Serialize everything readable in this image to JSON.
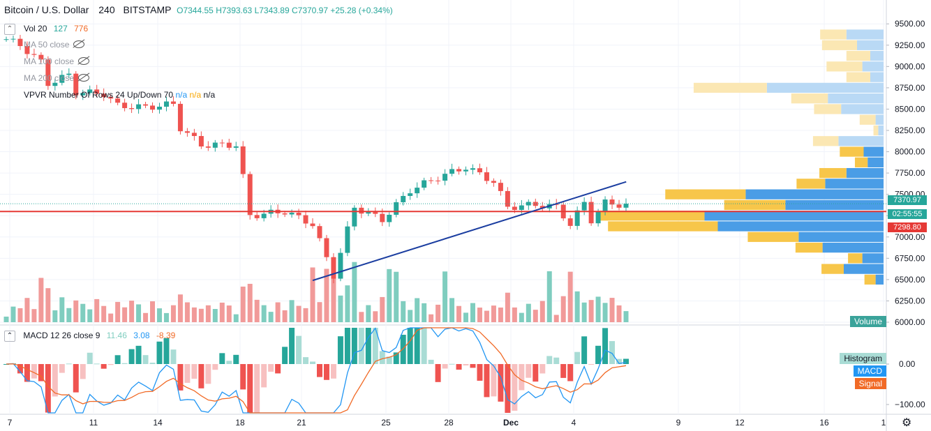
{
  "header": {
    "symbol": "Bitcoin / U.S. Dollar",
    "interval": "240",
    "exchange": "BITSTAMP",
    "open": "O7344.55",
    "high": "H7393.63",
    "low": "L7343.89",
    "close": "C7370.97",
    "change": "+25.28 (+0.34%)"
  },
  "legend": {
    "vol_label": "Vol 20",
    "vol_v1": "127",
    "vol_v2": "776",
    "ma50": "MA 50 close",
    "ma100": "MA 100 close",
    "ma200": "MA 200 close",
    "vpvr": "VPVR Number Of Rows 24 Up/Down 70",
    "vpvr_na1": "n/a",
    "vpvr_na2": "n/a",
    "vpvr_na3": "n/a"
  },
  "macd_header": {
    "label": "MACD 12 26 close 9",
    "hist": "11.46",
    "macd": "3.08",
    "signal": "-8.39"
  },
  "badges": {
    "last_price": "7370.97",
    "countdown": "02:55:55",
    "level": "7298.80",
    "volume": "Volume",
    "histogram": "Histogram",
    "macd": "MACD",
    "signal": "Signal"
  },
  "colors": {
    "up": "#26a69a",
    "down": "#ef5350",
    "vol_up": "#7fcdbf",
    "vol_down": "#f19a99",
    "hline": "#e53935",
    "trend": "#1a3da0",
    "macd_line": "#2196f3",
    "signal_line": "#f16a26",
    "vp_up": "#4a9de6",
    "vp_down": "#f7c64a"
  },
  "chart_data": {
    "type": "candlestick",
    "y_axis": {
      "min": 6000,
      "max": 9600,
      "ticks": [
        "9500.00",
        "9250.00",
        "9000.00",
        "8750.00",
        "8500.00",
        "8250.00",
        "8000.00",
        "7750.00",
        "7500.00",
        "7250.00",
        "7000.00",
        "6750.00",
        "6500.00",
        "6250.00",
        "6000.00"
      ]
    },
    "x_axis": {
      "ticks": [
        "7",
        "11",
        "14",
        "18",
        "21",
        "25",
        "28",
        "Dec",
        "4",
        "9",
        "12",
        "16",
        "1"
      ]
    },
    "horizontal_line": 7298.8,
    "price_path": [
      [
        0,
        9320
      ],
      [
        2,
        9250
      ],
      [
        5,
        9050
      ],
      [
        6,
        8800
      ],
      [
        9,
        8900
      ],
      [
        10,
        8700
      ],
      [
        14,
        8680
      ],
      [
        16,
        8540
      ],
      [
        20,
        8520
      ],
      [
        24,
        8560
      ],
      [
        25,
        8280
      ],
      [
        28,
        8080
      ],
      [
        33,
        8080
      ],
      [
        34,
        7700
      ],
      [
        35,
        7250
      ],
      [
        40,
        7300
      ],
      [
        44,
        7150
      ],
      [
        46,
        6750
      ],
      [
        47,
        6550
      ],
      [
        50,
        7350
      ],
      [
        54,
        7200
      ],
      [
        58,
        7550
      ],
      [
        62,
        7700
      ],
      [
        66,
        7820
      ],
      [
        70,
        7650
      ],
      [
        72,
        7350
      ],
      [
        76,
        7380
      ],
      [
        79,
        7350
      ],
      [
        81,
        7150
      ],
      [
        83,
        7400
      ],
      [
        84,
        7200
      ],
      [
        86,
        7400
      ],
      [
        89,
        7371
      ]
    ],
    "trendline": [
      [
        44,
        6490
      ],
      [
        79,
        7500
      ]
    ],
    "volume_profile": [
      {
        "price": 9375,
        "up": 28,
        "down": 33
      },
      {
        "price": 9250,
        "up": 20,
        "down": 44
      },
      {
        "price": 9125,
        "up": 10,
        "down": 30
      },
      {
        "price": 9000,
        "up": 16,
        "down": 45
      },
      {
        "price": 8875,
        "up": 10,
        "down": 30
      },
      {
        "price": 8750,
        "up": 88,
        "down": 92
      },
      {
        "price": 8625,
        "up": 42,
        "down": 46
      },
      {
        "price": 8500,
        "up": 32,
        "down": 34
      },
      {
        "price": 8375,
        "up": 6,
        "down": 20
      },
      {
        "price": 8250,
        "up": 4,
        "down": 6
      },
      {
        "price": 8125,
        "up": 34,
        "down": 32
      },
      {
        "price": 8000,
        "up": 15,
        "down": 30
      },
      {
        "price": 7875,
        "up": 12,
        "down": 16
      },
      {
        "price": 7750,
        "up": 28,
        "down": 34
      },
      {
        "price": 7625,
        "up": 44,
        "down": 36
      },
      {
        "price": 7500,
        "up": 104,
        "down": 101
      },
      {
        "price": 7375,
        "up": 74,
        "down": 77
      },
      {
        "price": 7250,
        "up": 135,
        "down": 132
      },
      {
        "price": 7125,
        "up": 125,
        "down": 138
      },
      {
        "price": 7000,
        "up": 64,
        "down": 64
      },
      {
        "price": 6875,
        "up": 46,
        "down": 34
      },
      {
        "price": 6750,
        "up": 16,
        "down": 18
      },
      {
        "price": 6625,
        "up": 30,
        "down": 28
      },
      {
        "price": 6500,
        "up": 6,
        "down": 14
      }
    ],
    "macd_axis": {
      "ticks": [
        "0.00",
        "−100.00"
      ]
    }
  }
}
